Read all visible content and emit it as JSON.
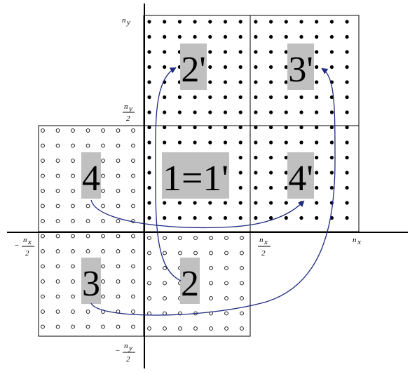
{
  "regions": [
    {
      "id": "1",
      "label": "1=1'"
    },
    {
      "id": "2",
      "label": "2"
    },
    {
      "id": "2p",
      "label": "2'"
    },
    {
      "id": "3",
      "label": "3"
    },
    {
      "id": "3p",
      "label": "3'"
    },
    {
      "id": "4",
      "label": "4"
    },
    {
      "id": "4p",
      "label": "4'"
    }
  ],
  "axis_labels": {
    "ny": "n",
    "ny_sub": "y",
    "ny_half_num": "n",
    "ny_half_sub": "y",
    "ny_half_den": "2",
    "nx": "n",
    "nx_sub": "x",
    "nx_half_num": "n",
    "nx_half_sub": "x",
    "nx_half_den": "2",
    "neg_nx_half_sign": "−",
    "neg_nx_half_num": "n",
    "neg_nx_half_sub": "x",
    "neg_nx_half_den": "2",
    "neg_ny_half_sign": "−",
    "neg_ny_half_num": "n",
    "neg_ny_half_sub": "y",
    "neg_ny_half_den": "2"
  },
  "colors": {
    "arrow": "#1f2a80",
    "label_bg": "#c0c0c0"
  }
}
